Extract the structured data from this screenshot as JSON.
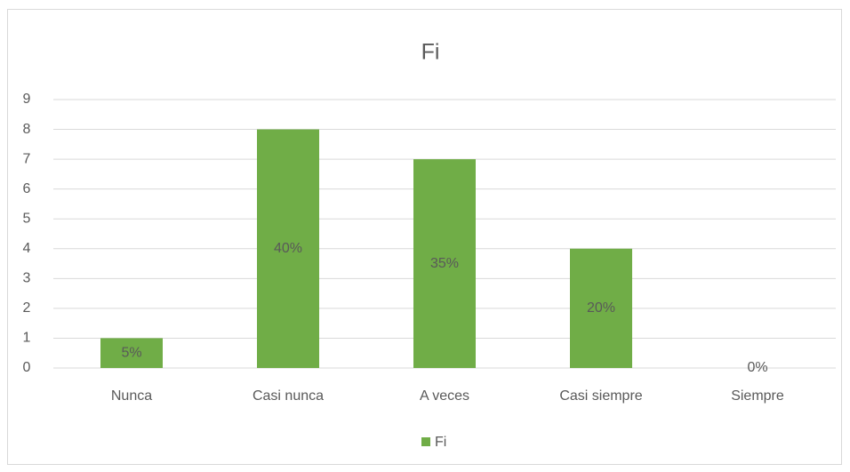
{
  "chart_data": {
    "type": "bar",
    "title": "Fi",
    "categories": [
      "Nunca",
      "Casi nunca",
      "A veces",
      "Casi siempre",
      "Siempre"
    ],
    "series": [
      {
        "name": "Fi",
        "color": "#70ad47",
        "values": [
          1,
          8,
          7,
          4,
          0
        ]
      }
    ],
    "data_labels": [
      "5%",
      "40%",
      "35%",
      "20%",
      "0%"
    ],
    "ylim": [
      0,
      9
    ],
    "yticks": [
      0,
      1,
      2,
      3,
      4,
      5,
      6,
      7,
      8,
      9
    ],
    "grid": true,
    "legend": "bottom"
  }
}
